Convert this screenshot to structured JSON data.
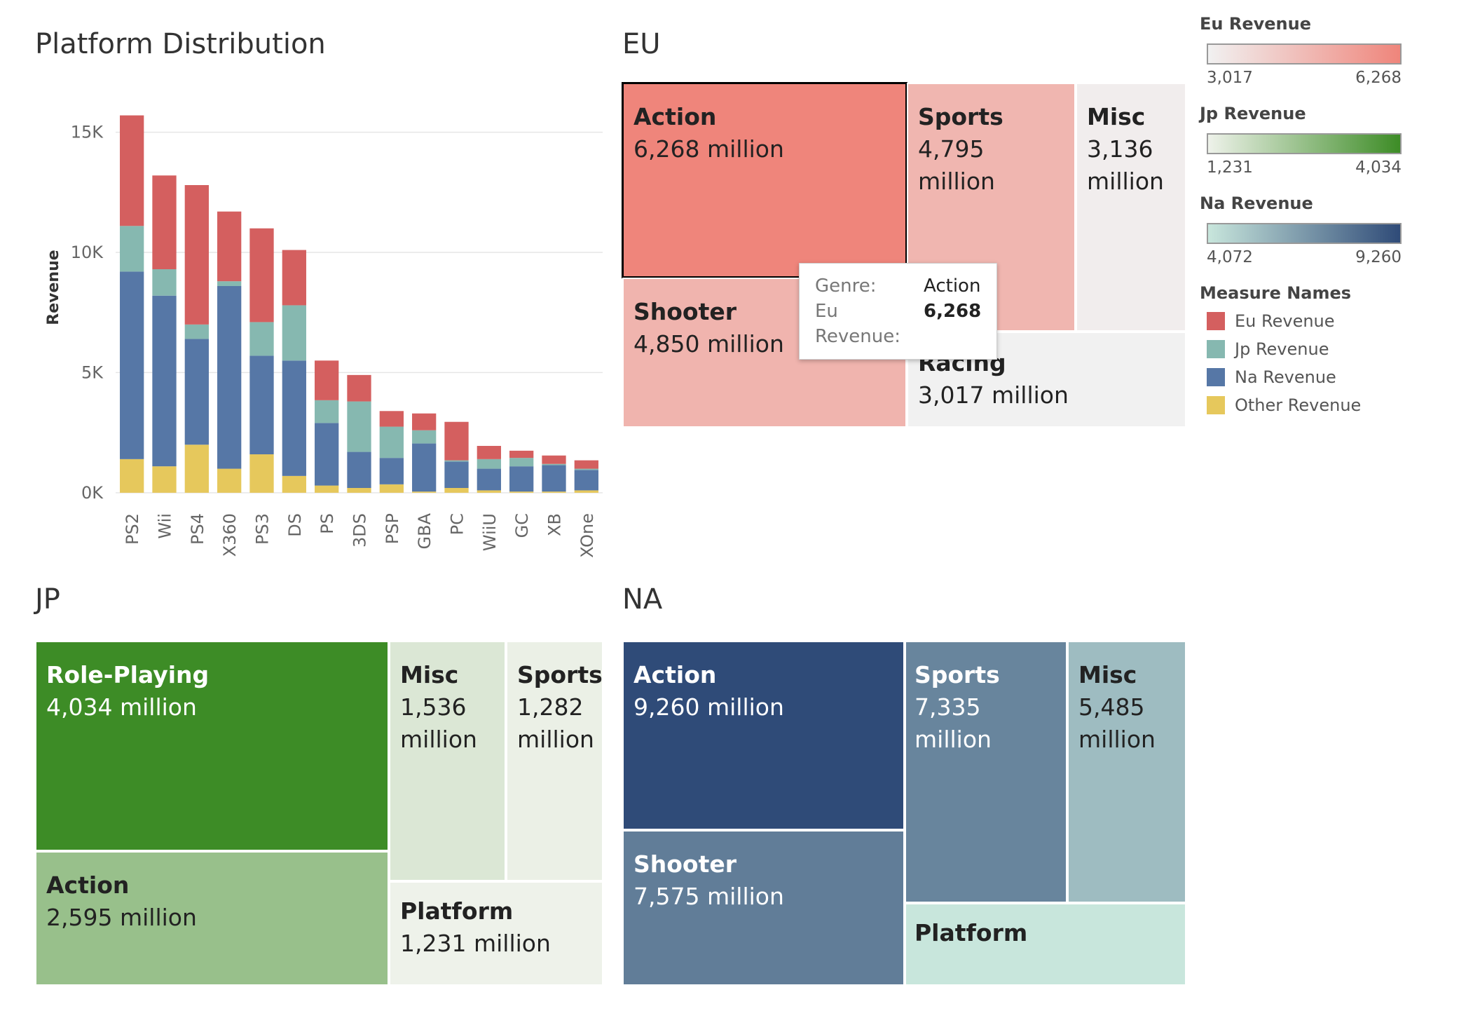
{
  "bar_title": "Platform Distribution",
  "eu_title": "EU",
  "jp_title": "JP",
  "na_title": "NA",
  "tooltip": {
    "genre_label": "Genre:",
    "genre_value": "Action",
    "measure_label": "Eu Revenue:",
    "measure_value": "6,268"
  },
  "legend": {
    "eu": {
      "title": "Eu Revenue",
      "min": "3,017",
      "max": "6,268",
      "from": "#f1f1f1",
      "to": "#ef857b"
    },
    "jp": {
      "title": "Jp Revenue",
      "min": "1,231",
      "max": "4,034",
      "from": "#eef2ea",
      "to": "#3d8c26"
    },
    "na": {
      "title": "Na Revenue",
      "min": "4,072",
      "max": "9,260",
      "from": "#c8e6dc",
      "to": "#2f4b78"
    },
    "measures": {
      "title": "Measure Names",
      "items": [
        {
          "label": "Eu Revenue",
          "color": "#d45f5f"
        },
        {
          "label": "Jp Revenue",
          "color": "#86b8b0"
        },
        {
          "label": "Na Revenue",
          "color": "#5677a6"
        },
        {
          "label": "Other Revenue",
          "color": "#e6c85c"
        }
      ]
    }
  },
  "chart_data": [
    {
      "type": "bar",
      "stacked": true,
      "title": "Platform Distribution",
      "ylabel": "Revenue",
      "ylim": [
        -500,
        17000
      ],
      "yticks": [
        0,
        5000,
        10000,
        15000
      ],
      "ytick_labels": [
        "0K",
        "5K",
        "10K",
        "15K"
      ],
      "categories": [
        "PS2",
        "Wii",
        "PS4",
        "X360",
        "PS3",
        "DS",
        "PS",
        "3DS",
        "PSP",
        "GBA",
        "PC",
        "WiiU",
        "GC",
        "XB",
        "XOne"
      ],
      "series": [
        {
          "name": "Other Revenue",
          "color": "#e6c85c",
          "values": [
            1400,
            1100,
            2000,
            1000,
            1600,
            700,
            300,
            200,
            350,
            50,
            200,
            100,
            50,
            50,
            100
          ]
        },
        {
          "name": "Na Revenue",
          "color": "#5677a6",
          "values": [
            7800,
            7100,
            4400,
            7600,
            4100,
            4800,
            2600,
            1500,
            1100,
            2000,
            1100,
            900,
            1050,
            1100,
            850
          ]
        },
        {
          "name": "Jp Revenue",
          "color": "#86b8b0",
          "values": [
            1900,
            1100,
            600,
            200,
            1400,
            2300,
            950,
            2100,
            1300,
            550,
            50,
            400,
            350,
            50,
            50
          ]
        },
        {
          "name": "Eu Revenue",
          "color": "#d45f5f",
          "values": [
            4600,
            3900,
            5800,
            2900,
            3900,
            2300,
            1650,
            1100,
            650,
            700,
            1600,
            550,
            300,
            350,
            350
          ]
        }
      ]
    },
    {
      "type": "treemap",
      "title": "EU",
      "measure": "Eu Revenue",
      "items": [
        {
          "genre": "Action",
          "label": "6,268 million",
          "value": 6268
        },
        {
          "genre": "Sports",
          "label": "4,795 million",
          "value": 4795
        },
        {
          "genre": "Misc",
          "label": "3,136 million",
          "value": 3136
        },
        {
          "genre": "Shooter",
          "label": "4,850 million",
          "value": 4850
        },
        {
          "genre": "Racing",
          "label": "3,017 million",
          "value": 3017
        }
      ]
    },
    {
      "type": "treemap",
      "title": "JP",
      "measure": "Jp Revenue",
      "items": [
        {
          "genre": "Role-Playing",
          "label": "4,034 million",
          "value": 4034
        },
        {
          "genre": "Misc",
          "label": "1,536 million",
          "value": 1536
        },
        {
          "genre": "Sports",
          "label": "1,282 million",
          "value": 1282
        },
        {
          "genre": "Action",
          "label": "2,595 million",
          "value": 2595
        },
        {
          "genre": "Platform",
          "label": "1,231 million",
          "value": 1231
        }
      ]
    },
    {
      "type": "treemap",
      "title": "NA",
      "measure": "Na Revenue",
      "items": [
        {
          "genre": "Action",
          "label": "9,260 million",
          "value": 9260
        },
        {
          "genre": "Sports",
          "label": "7,335 million",
          "value": 7335
        },
        {
          "genre": "Misc",
          "label": "5,485 million",
          "value": 5485
        },
        {
          "genre": "Shooter",
          "label": "7,575 million",
          "value": 7575
        },
        {
          "genre": "Platform",
          "label": "",
          "value": 4072
        }
      ]
    }
  ]
}
